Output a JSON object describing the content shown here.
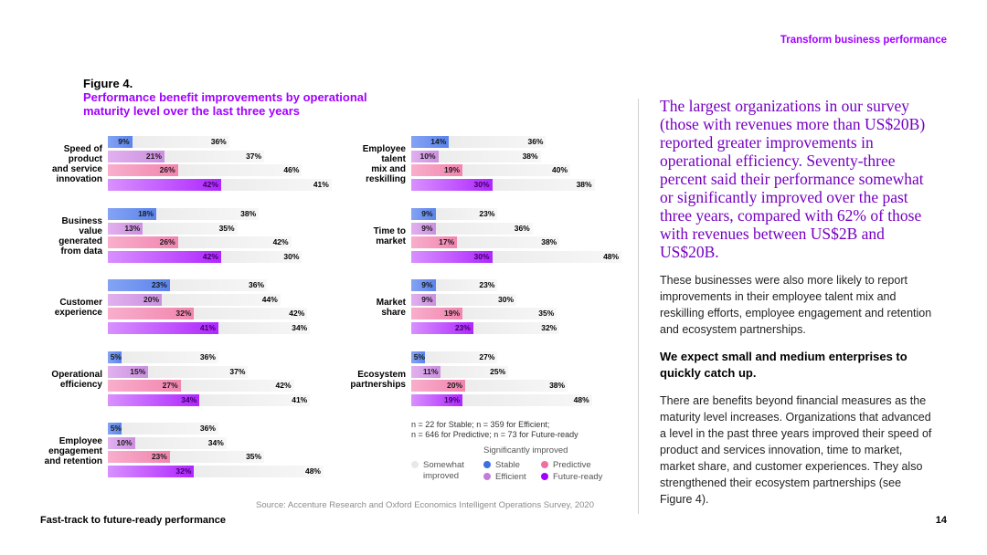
{
  "header": {
    "section": "Transform business performance"
  },
  "footer": {
    "left": "Fast-track to future-ready performance",
    "page_number": "14"
  },
  "figure": {
    "label": "Figure 4.",
    "title": "Performance benefit improvements by operational maturity level over the last three years",
    "source": "Source: Accenture Research and Oxford Economics Intelligent Operations Survey, 2020",
    "note_line1": "n = 22 for Stable; n = 359 for Efficient;",
    "note_line2": "n = 646 for Predictive; n = 73 for Future-ready"
  },
  "legend": {
    "somewhat_line1": "Somewhat",
    "somewhat_line2": "improved",
    "significant_title": "Significantly improved",
    "stable": "Stable",
    "efficient": "Efficient",
    "predictive": "Predictive",
    "future_ready": "Future-ready"
  },
  "colors": {
    "stable": "#3d6ee8",
    "efficient": "#c27cd9",
    "predictive": "#ef6fa0",
    "future_ready": "#a100ff",
    "accent": "#a100ff"
  },
  "chart_data": {
    "type": "bar",
    "orientation": "horizontal-stacked",
    "series_order": [
      "Stable",
      "Efficient",
      "Predictive",
      "Future-ready"
    ],
    "segments": [
      "Significantly improved",
      "Somewhat improved"
    ],
    "categories": [
      {
        "name": "Speed of product and service innovation",
        "lines": [
          "Speed of",
          "product",
          "and service",
          "innovation"
        ],
        "significant": [
          9,
          21,
          26,
          42
        ],
        "somewhat": [
          36,
          37,
          46,
          41
        ]
      },
      {
        "name": "Business value generated from data",
        "lines": [
          "Business",
          "value",
          "generated",
          "from data"
        ],
        "significant": [
          18,
          13,
          26,
          42
        ],
        "somewhat": [
          38,
          35,
          42,
          30
        ]
      },
      {
        "name": "Customer experience",
        "lines": [
          "Customer",
          "experience"
        ],
        "significant": [
          23,
          20,
          32,
          41
        ],
        "somewhat": [
          36,
          44,
          42,
          34
        ]
      },
      {
        "name": "Operational efficiency",
        "lines": [
          "Operational",
          "efficiency"
        ],
        "significant": [
          5,
          15,
          27,
          34
        ],
        "somewhat": [
          36,
          37,
          42,
          41
        ]
      },
      {
        "name": "Employee engagement and retention",
        "lines": [
          "Employee",
          "engagement",
          "and retention"
        ],
        "significant": [
          5,
          10,
          23,
          32
        ],
        "somewhat": [
          36,
          34,
          35,
          48
        ]
      },
      {
        "name": "Employee talent mix and reskilling",
        "lines": [
          "Employee",
          "talent",
          "mix and",
          "reskilling"
        ],
        "significant": [
          14,
          10,
          19,
          30
        ],
        "somewhat": [
          36,
          38,
          40,
          38
        ]
      },
      {
        "name": "Time to market",
        "lines": [
          "Time to",
          "market"
        ],
        "significant": [
          9,
          9,
          17,
          30
        ],
        "somewhat": [
          23,
          36,
          38,
          48
        ]
      },
      {
        "name": "Market share",
        "lines": [
          "Market",
          "share"
        ],
        "significant": [
          9,
          9,
          19,
          23
        ],
        "somewhat": [
          23,
          30,
          35,
          32
        ]
      },
      {
        "name": "Ecosystem partnerships",
        "lines": [
          "Ecosystem",
          "partnerships"
        ],
        "significant": [
          5,
          11,
          20,
          19
        ],
        "somewhat": [
          27,
          25,
          38,
          48
        ]
      }
    ]
  },
  "body": {
    "lead": "The largest organizations in our survey (those with revenues more than US$20B) reported greater improvements in operational efficiency. Seventy-three percent said their performance somewhat or significantly improved over the past three years, compared with 62% of those with revenues between US$2B and US$20B.",
    "paragraph1": "These businesses were also more likely to report improvements in their employee talent mix and reskilling efforts, employee engagement and retention and ecosystem partnerships.",
    "subheading": "We expect small and medium enterprises to quickly catch up.",
    "paragraph2": "There are benefits beyond financial measures as the maturity level increases. Organizations that advanced a level in the past three years improved their speed of product and services innovation, time to market, market share, and customer experiences. They also strengthened their ecosystem partnerships (see Figure 4)."
  }
}
